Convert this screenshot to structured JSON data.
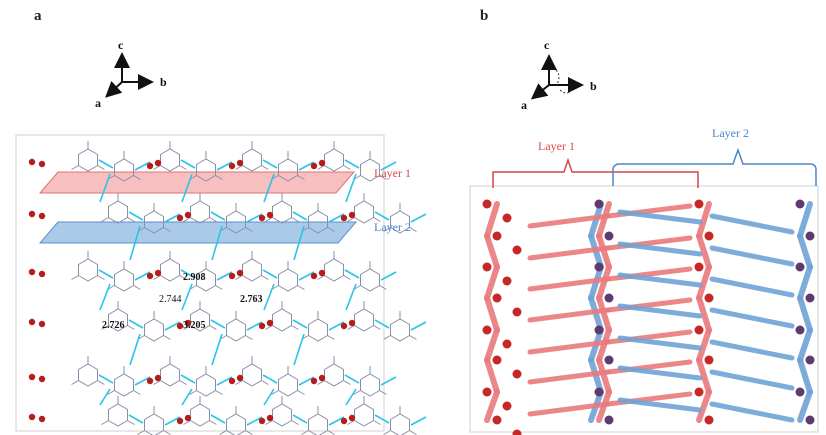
{
  "panels": {
    "a": {
      "letter": "a",
      "axes": {
        "c": "c",
        "b": "b",
        "a": "a"
      },
      "layers": [
        {
          "label": "Layer 1",
          "color": "#d94a4a"
        },
        {
          "label": "Layer 2",
          "color": "#4a86c8"
        }
      ],
      "distances": [
        {
          "text": "2.908",
          "bold": true
        },
        {
          "text": "2.744",
          "bold": false
        },
        {
          "text": "2.763",
          "bold": true
        },
        {
          "text": "2.726",
          "bold": true
        },
        {
          "text": "3.205",
          "bold": true
        }
      ]
    },
    "b": {
      "letter": "b",
      "axes": {
        "c": "c",
        "b": "b",
        "a": "a"
      },
      "layers": [
        {
          "label": "Layer 1",
          "color": "#d94a4a"
        },
        {
          "label": "Layer 2",
          "color": "#4a86c8"
        }
      ]
    }
  },
  "colors": {
    "oxygen": "#b71c1c",
    "hbond": "#29c4e8",
    "framework": "#8a8fa8",
    "layer1_fill": "#f4a9a9",
    "layer2_fill": "#8fb8e3",
    "rod_red": "#e9797c",
    "rod_blue": "#6fa3d6"
  }
}
